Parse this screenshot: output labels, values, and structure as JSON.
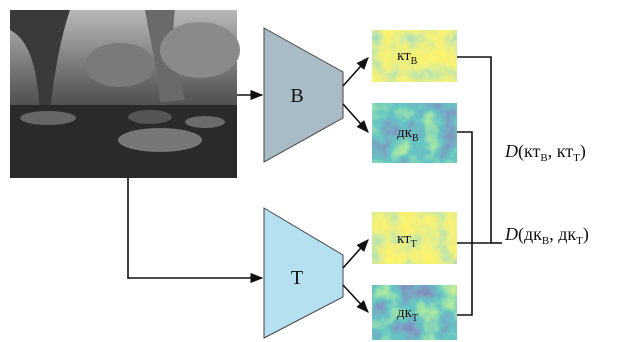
{
  "encoders": [
    {
      "label": "В"
    },
    {
      "label": "Т"
    }
  ],
  "maps": [
    {
      "base": "кт",
      "sub": "В"
    },
    {
      "base": "дк",
      "sub": "В"
    },
    {
      "base": "кт",
      "sub": "Т"
    },
    {
      "base": "дк",
      "sub": "Т"
    }
  ],
  "formulas": [
    {
      "func": "D",
      "open": "(",
      "a": {
        "base": "кт",
        "sub": "В"
      },
      "sep": ", ",
      "b": {
        "base": "кт",
        "sub": "Т"
      },
      "close": ")"
    },
    {
      "func": "D",
      "open": "(",
      "a": {
        "base": "дк",
        "sub": "В"
      },
      "sep": ", ",
      "b": {
        "base": "дк",
        "sub": "Т"
      },
      "close": ")"
    }
  ]
}
